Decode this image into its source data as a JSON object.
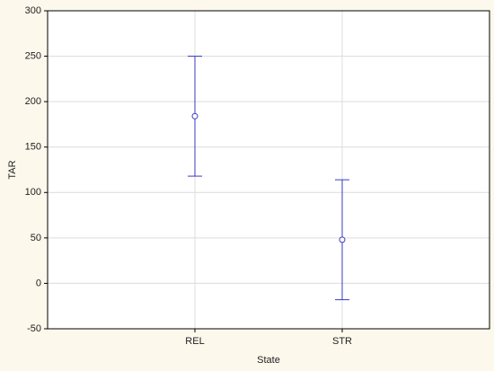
{
  "chart_data": {
    "type": "errorbar",
    "x_label": "State",
    "y_label": "TAR",
    "categories": [
      "REL",
      "STR"
    ],
    "series": [
      {
        "color": "#3a3ac4",
        "values": [
          184,
          48
        ],
        "errors": [
          66,
          66
        ]
      }
    ],
    "ylim": [
      -50,
      300
    ],
    "yticks": [
      -50,
      0,
      50,
      100,
      150,
      200,
      250,
      300
    ],
    "grid": true
  }
}
